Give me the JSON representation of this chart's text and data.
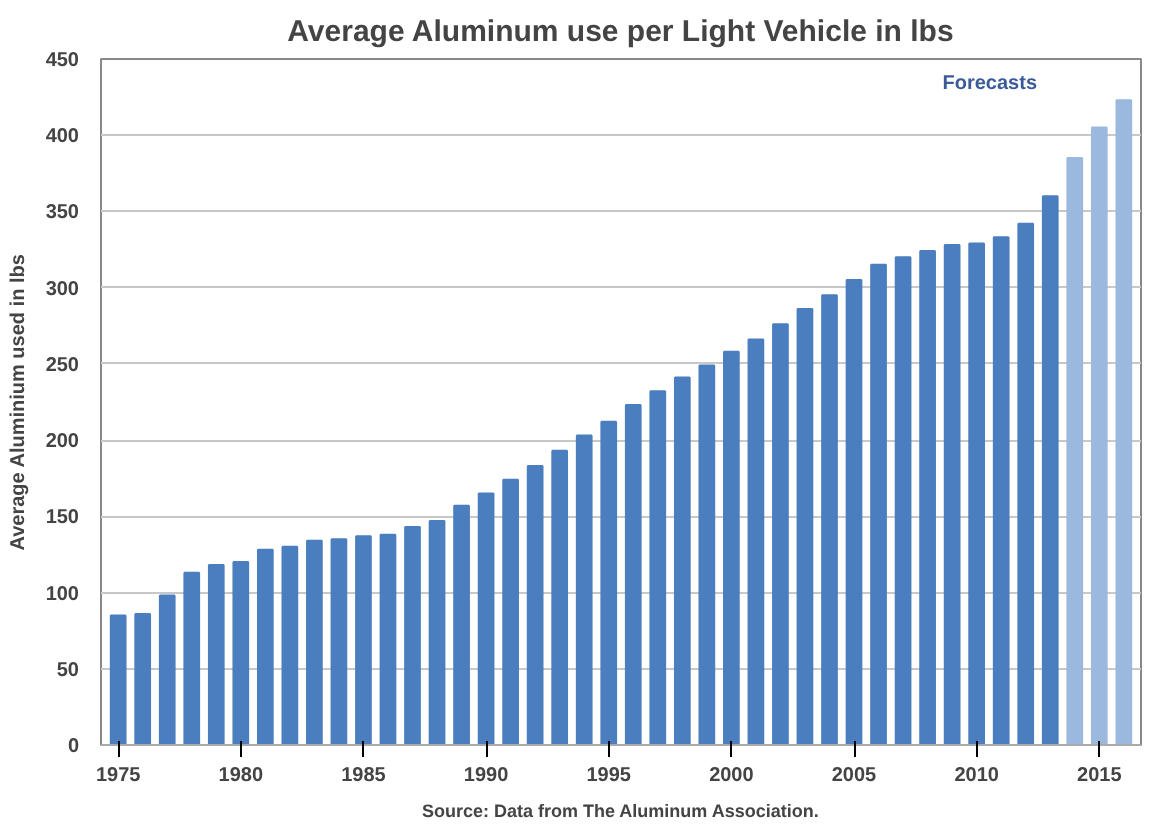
{
  "chart_data": {
    "type": "bar",
    "title": "Average Aluminum use per Light Vehicle in lbs",
    "ylabel": "Average Aluminium used in lbs",
    "x": [
      1975,
      1976,
      1977,
      1978,
      1979,
      1980,
      1981,
      1982,
      1983,
      1984,
      1985,
      1986,
      1987,
      1988,
      1989,
      1990,
      1991,
      1992,
      1993,
      1994,
      1995,
      1996,
      1997,
      1998,
      1999,
      2000,
      2001,
      2002,
      2003,
      2004,
      2005,
      2006,
      2007,
      2008,
      2009,
      2010,
      2011,
      2012,
      2013,
      2014,
      2015,
      2016
    ],
    "values": [
      85,
      86,
      98,
      113,
      118,
      120,
      128,
      130,
      134,
      135,
      137,
      138,
      143,
      147,
      157,
      165,
      174,
      183,
      193,
      203,
      212,
      223,
      232,
      241,
      249,
      258,
      266,
      276,
      286,
      295,
      305,
      315,
      320,
      324,
      328,
      329,
      333,
      342,
      360,
      385,
      405,
      423
    ],
    "colors": [
      "#4a7ebf",
      "#4a7ebf",
      "#4a7ebf",
      "#4a7ebf",
      "#4a7ebf",
      "#4a7ebf",
      "#4a7ebf",
      "#4a7ebf",
      "#4a7ebf",
      "#4a7ebf",
      "#4a7ebf",
      "#4a7ebf",
      "#4a7ebf",
      "#4a7ebf",
      "#4a7ebf",
      "#4a7ebf",
      "#4a7ebf",
      "#4a7ebf",
      "#4a7ebf",
      "#4a7ebf",
      "#4a7ebf",
      "#4a7ebf",
      "#4a7ebf",
      "#4a7ebf",
      "#4a7ebf",
      "#4a7ebf",
      "#4a7ebf",
      "#4a7ebf",
      "#4a7ebf",
      "#4a7ebf",
      "#4a7ebf",
      "#4a7ebf",
      "#4a7ebf",
      "#4a7ebf",
      "#4a7ebf",
      "#4a7ebf",
      "#4a7ebf",
      "#4a7ebf",
      "#4a7ebf",
      "#9bb9df",
      "#9bb9df",
      "#9bb9df"
    ],
    "xlim": [
      1974.3,
      2016.7
    ],
    "xticks": [
      1975,
      1980,
      1985,
      1990,
      1995,
      2000,
      2005,
      2010,
      2015
    ],
    "ylim": [
      0,
      450
    ],
    "yticks": [
      0,
      50,
      100,
      150,
      200,
      250,
      300,
      350,
      400,
      450
    ],
    "grid": "y",
    "annotations": [
      "Forecasts",
      "Source: Data from The Aluminum Association."
    ]
  }
}
